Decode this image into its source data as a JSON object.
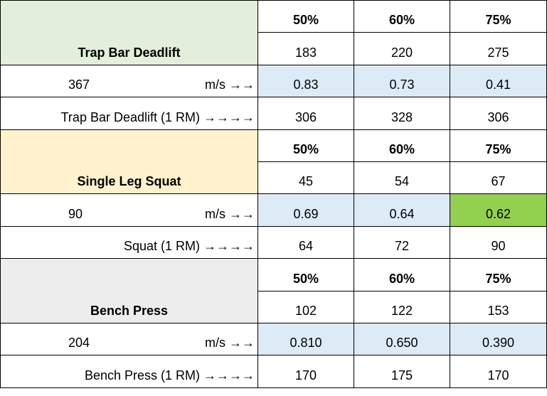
{
  "sections": [
    {
      "name": "Trap Bar Deadlift",
      "color": "#e2efda",
      "percents": [
        "50%",
        "60%",
        "75%"
      ],
      "loads": [
        "183",
        "220",
        "275"
      ],
      "max": "367",
      "unit": "m/s →→",
      "velocities": [
        "0.83",
        "0.73",
        "0.41"
      ],
      "velocity_colors": [
        "#ddebf7",
        "#ddebf7",
        "#ddebf7"
      ],
      "one_rm_label": "Trap Bar Deadlift (1 RM) →→→→",
      "one_rm_values": [
        "306",
        "328",
        "306"
      ]
    },
    {
      "name": "Single Leg Squat",
      "color": "#fff2cc",
      "percents": [
        "50%",
        "60%",
        "75%"
      ],
      "loads": [
        "45",
        "54",
        "67"
      ],
      "max": "90",
      "unit": "m/s →→",
      "velocities": [
        "0.69",
        "0.64",
        "0.62"
      ],
      "velocity_colors": [
        "#ddebf7",
        "#ddebf7",
        "#92d050"
      ],
      "one_rm_label": "Squat (1 RM) →→→→",
      "one_rm_values": [
        "64",
        "72",
        "90"
      ]
    },
    {
      "name": "Bench Press",
      "color": "#ededed",
      "percents": [
        "50%",
        "60%",
        "75%"
      ],
      "loads": [
        "102",
        "122",
        "153"
      ],
      "max": "204",
      "unit": "m/s →→",
      "velocities": [
        "0.810",
        "0.650",
        "0.390"
      ],
      "velocity_colors": [
        "#ddebf7",
        "#ddebf7",
        "#ddebf7"
      ],
      "one_rm_label": "Bench Press (1 RM) →→→→",
      "one_rm_values": [
        "170",
        "175",
        "170"
      ]
    }
  ]
}
